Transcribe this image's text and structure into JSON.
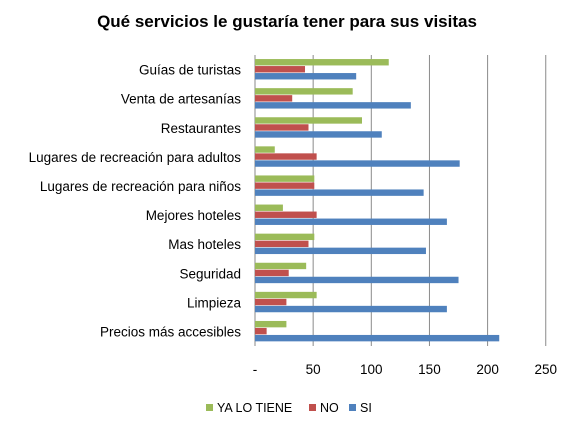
{
  "chart_data": {
    "type": "bar",
    "orientation": "horizontal",
    "title": "Qué servicios le gustaría tener para sus visitas",
    "categories": [
      "Guías de turistas",
      "Venta de artesanías",
      "Restaurantes",
      "Lugares de recreación para adultos",
      "Lugares de recreación para niños",
      "Mejores hoteles",
      "Mas hoteles",
      "Seguridad",
      "Limpieza",
      "Precios más accesibles"
    ],
    "series": [
      {
        "name": "YA LO TIENE",
        "color": "#9BBB59",
        "values": [
          115,
          84,
          92,
          17,
          51,
          24,
          51,
          44,
          53,
          27
        ]
      },
      {
        "name": "NO",
        "color": "#C0504D",
        "values": [
          43,
          32,
          46,
          53,
          51,
          53,
          46,
          29,
          27,
          10
        ]
      },
      {
        "name": "SI",
        "color": "#4F81BD",
        "values": [
          87,
          134,
          109,
          176,
          145,
          165,
          147,
          175,
          165,
          210
        ]
      }
    ],
    "xlim": [
      0,
      250
    ],
    "xticks": [
      "-",
      "50",
      "100",
      "150",
      "200",
      "250"
    ],
    "xlabel": "",
    "ylabel": "",
    "grid": "vertical",
    "legend_position": "bottom"
  }
}
